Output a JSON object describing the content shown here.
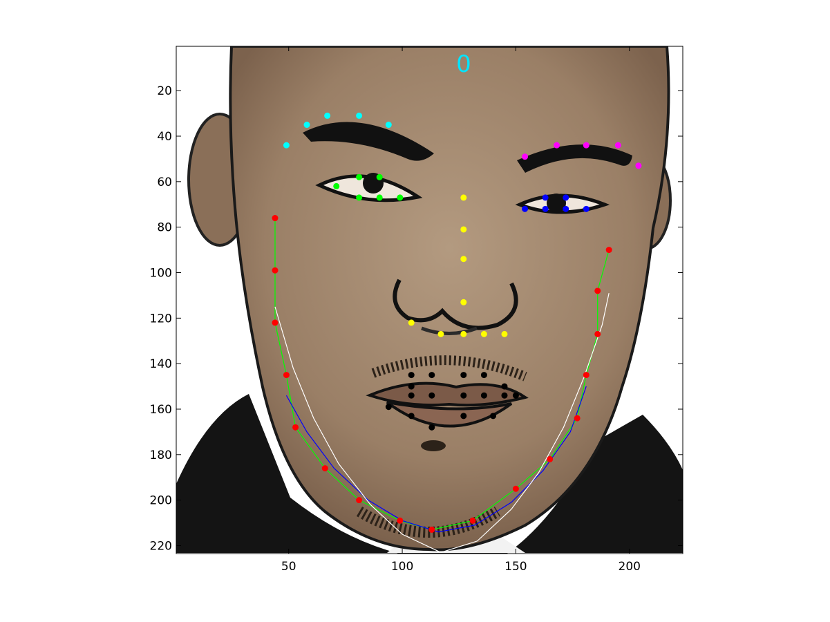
{
  "chart_data": {
    "type": "scatter",
    "title": "",
    "annotation": "0",
    "xlabel": "",
    "ylabel": "",
    "xlim": [
      0.5,
      223.5
    ],
    "ylim": [
      0.5,
      223.5
    ],
    "y_reversed": true,
    "x_ticks": [
      50,
      100,
      150,
      200
    ],
    "y_ticks": [
      20,
      40,
      60,
      80,
      100,
      120,
      140,
      160,
      180,
      200,
      220
    ],
    "background_image": "face-illustration",
    "grid": false,
    "series": [
      {
        "color": "#ff0000",
        "points": [
          [
            44,
            76
          ],
          [
            44,
            99
          ],
          [
            44,
            122
          ],
          [
            49,
            145
          ],
          [
            53,
            168
          ],
          [
            66,
            186
          ],
          [
            81,
            200
          ],
          [
            99,
            209
          ],
          [
            113,
            213
          ],
          [
            131,
            209
          ],
          [
            150,
            195
          ],
          [
            165,
            182
          ],
          [
            177,
            164
          ],
          [
            181,
            145
          ],
          [
            186,
            127
          ],
          [
            186,
            108
          ],
          [
            191,
            90
          ]
        ]
      },
      {
        "color": "#00ffff",
        "points": [
          [
            49,
            44
          ],
          [
            58,
            35
          ],
          [
            67,
            31
          ],
          [
            81,
            31
          ],
          [
            94,
            35
          ]
        ]
      },
      {
        "color": "#ff00ff",
        "points": [
          [
            154,
            49
          ],
          [
            168,
            44
          ],
          [
            181,
            44
          ],
          [
            195,
            44
          ],
          [
            204,
            53
          ]
        ]
      },
      {
        "color": "#00ff00",
        "points": [
          [
            71,
            62
          ],
          [
            81,
            58
          ],
          [
            90,
            58
          ],
          [
            81,
            67
          ],
          [
            90,
            67
          ],
          [
            99,
            67
          ]
        ]
      },
      {
        "color": "#0000ff",
        "points": [
          [
            154,
            72
          ],
          [
            163,
            67
          ],
          [
            172,
            67
          ],
          [
            163,
            72
          ],
          [
            172,
            72
          ],
          [
            181,
            72
          ]
        ]
      },
      {
        "color": "#ffff00",
        "points": [
          [
            127,
            67
          ],
          [
            127,
            81
          ],
          [
            127,
            94
          ],
          [
            127,
            113
          ],
          [
            104,
            122
          ],
          [
            117,
            127
          ],
          [
            127,
            127
          ],
          [
            136,
            127
          ],
          [
            145,
            127
          ]
        ]
      },
      {
        "color": "#000000",
        "points": [
          [
            104,
            145
          ],
          [
            113,
            145
          ],
          [
            127,
            145
          ],
          [
            136,
            145
          ],
          [
            145,
            150
          ],
          [
            104,
            150
          ],
          [
            104,
            154
          ],
          [
            113,
            154
          ],
          [
            127,
            154
          ],
          [
            136,
            154
          ],
          [
            145,
            154
          ],
          [
            150,
            154
          ],
          [
            94,
            159
          ],
          [
            104,
            163
          ],
          [
            127,
            163
          ],
          [
            140,
            163
          ],
          [
            113,
            168
          ]
        ]
      }
    ],
    "curves": [
      {
        "color": "#00ff00",
        "points": [
          [
            44,
            76
          ],
          [
            44,
            99
          ],
          [
            44,
            122
          ],
          [
            49,
            145
          ],
          [
            53,
            168
          ],
          [
            66,
            186
          ],
          [
            81,
            200
          ],
          [
            99,
            209
          ],
          [
            113,
            213
          ],
          [
            131,
            209
          ],
          [
            150,
            195
          ],
          [
            165,
            182
          ],
          [
            177,
            164
          ],
          [
            181,
            145
          ],
          [
            186,
            127
          ],
          [
            186,
            108
          ],
          [
            191,
            90
          ]
        ]
      },
      {
        "color": "#0000ff",
        "points": [
          [
            49,
            154
          ],
          [
            58,
            170
          ],
          [
            70,
            186
          ],
          [
            85,
            200
          ],
          [
            100,
            209
          ],
          [
            116,
            214
          ],
          [
            132,
            211
          ],
          [
            148,
            201
          ],
          [
            162,
            187
          ],
          [
            174,
            170
          ],
          [
            181,
            150
          ]
        ]
      },
      {
        "color": "#ffffff",
        "points": [
          [
            44,
            115
          ],
          [
            52,
            142
          ],
          [
            61,
            164
          ],
          [
            72,
            184
          ],
          [
            86,
            202
          ],
          [
            100,
            215
          ],
          [
            117,
            223
          ],
          [
            133,
            218
          ],
          [
            148,
            204
          ],
          [
            160,
            188
          ],
          [
            171,
            168
          ],
          [
            180,
            146
          ],
          [
            188,
            123
          ],
          [
            191,
            109
          ]
        ]
      }
    ]
  }
}
